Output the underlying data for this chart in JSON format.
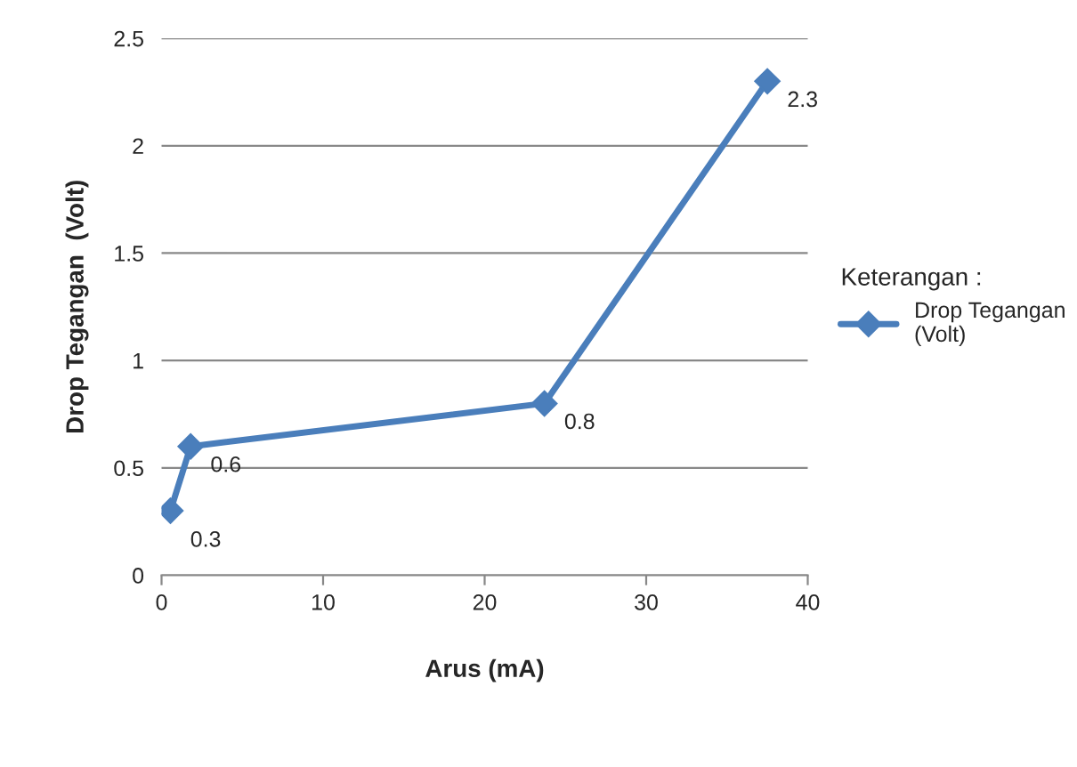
{
  "chart_data": {
    "type": "line",
    "xlabel": "Arus (mA)",
    "ylabel": "Drop Tegangan  (Volt)",
    "legend_title": "Keterangan :",
    "x": [
      0.55,
      1.8,
      23.7,
      37.5
    ],
    "series": [
      {
        "name": "Drop Tegangan\n(Volt)",
        "color": "#4a7ebb",
        "values": [
          0.3,
          0.6,
          0.8,
          2.3
        ]
      }
    ],
    "xlim": [
      0,
      40
    ],
    "xticks": [
      0,
      10,
      20,
      30,
      40
    ],
    "ylim": [
      0,
      2.5
    ],
    "yticks": [
      0,
      0.5,
      1,
      1.5,
      2,
      2.5
    ],
    "grid": "y",
    "legend": "right",
    "marker": "diamond",
    "line_style": "solid",
    "data_labels": true
  }
}
